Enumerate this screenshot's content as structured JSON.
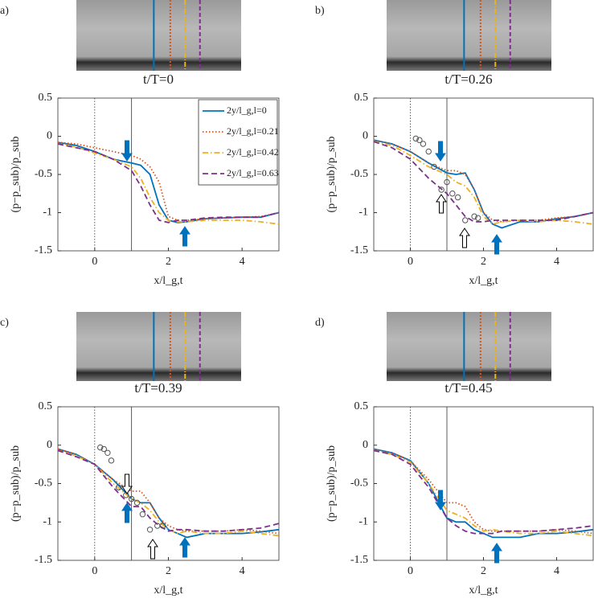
{
  "chart_data": [
    {
      "type": "line",
      "panel": "a)",
      "title": "t/T=0",
      "xlabel": "x/l_g,t",
      "ylabel": "(p−p_sub)/p_sub",
      "xlim": [
        -1,
        5
      ],
      "xticks": [
        0,
        2,
        4
      ],
      "ylim": [
        -1.5,
        0.5
      ],
      "yticks": [
        0.5,
        0,
        -0.5,
        -1,
        -1.5
      ],
      "vlines": [
        0,
        1
      ],
      "legend": "upper right",
      "x": [
        -1,
        -0.5,
        0,
        0.5,
        1,
        1.25,
        1.5,
        1.75,
        2,
        2.25,
        2.5,
        3,
        3.5,
        4,
        4.5,
        5
      ],
      "series": [
        {
          "name": "2y/l_g,l=0",
          "color": "#0072bd",
          "dash": "solid",
          "values": [
            -0.08,
            -0.12,
            -0.2,
            -0.3,
            -0.35,
            -0.38,
            -0.5,
            -0.9,
            -1.1,
            -1.13,
            -1.12,
            -1.08,
            -1.07,
            -1.06,
            -1.06,
            -1.0
          ]
        },
        {
          "name": "2y/l_g,l=0.21",
          "color": "#d95319",
          "dash": "dotted",
          "values": [
            -0.08,
            -0.1,
            -0.15,
            -0.2,
            -0.25,
            -0.3,
            -0.4,
            -0.6,
            -1.05,
            -1.1,
            -1.1,
            -1.08,
            -1.07,
            -1.06,
            -1.05,
            -1.0
          ]
        },
        {
          "name": "2y/l_g,l=0.42",
          "color": "#edb120",
          "dash": "dashdot",
          "values": [
            -0.1,
            -0.14,
            -0.22,
            -0.3,
            -0.4,
            -0.55,
            -0.8,
            -1.0,
            -1.1,
            -1.12,
            -1.12,
            -1.1,
            -1.1,
            -1.1,
            -1.12,
            -1.15
          ]
        },
        {
          "name": "2y/l_g,l=0.63",
          "color": "#7e2f8e",
          "dash": "dashed",
          "values": [
            -0.1,
            -0.15,
            -0.2,
            -0.3,
            -0.45,
            -0.65,
            -0.9,
            -1.1,
            -1.13,
            -1.1,
            -1.1,
            -1.07,
            -1.06,
            -1.06,
            -1.06,
            -1.0
          ]
        }
      ]
    },
    {
      "type": "line",
      "panel": "b)",
      "title": "t/T=0.26",
      "xlabel": "x/l_g,t",
      "ylabel": "(p−p_sub)/p_sub",
      "xlim": [
        -1,
        5
      ],
      "xticks": [
        0,
        2,
        4
      ],
      "ylim": [
        -1.5,
        0.5
      ],
      "yticks": [
        0.5,
        0,
        -0.5,
        -1,
        -1.5
      ],
      "vlines": [
        0,
        1
      ],
      "x": [
        -1,
        -0.5,
        0,
        0.5,
        1,
        1.25,
        1.5,
        1.75,
        2,
        2.25,
        2.5,
        3,
        3.5,
        4,
        4.5,
        5
      ],
      "series": [
        {
          "color": "#0072bd",
          "dash": "solid",
          "values": [
            -0.05,
            -0.1,
            -0.2,
            -0.35,
            -0.48,
            -0.5,
            -0.48,
            -0.7,
            -1.0,
            -1.15,
            -1.2,
            -1.12,
            -1.12,
            -1.08,
            -1.05,
            -1.0
          ]
        },
        {
          "color": "#d95319",
          "dash": "dotted",
          "values": [
            -0.05,
            -0.1,
            -0.2,
            -0.35,
            -0.45,
            -0.45,
            -0.5,
            -0.7,
            -1.0,
            -1.1,
            -1.12,
            -1.1,
            -1.1,
            -1.07,
            -1.05,
            -1.0
          ]
        },
        {
          "color": "#edb120",
          "dash": "dashdot",
          "values": [
            -0.07,
            -0.12,
            -0.25,
            -0.4,
            -0.5,
            -0.6,
            -0.65,
            -0.8,
            -1.05,
            -1.15,
            -1.12,
            -1.1,
            -1.12,
            -1.1,
            -1.12,
            -1.15
          ]
        },
        {
          "color": "#7e2f8e",
          "dash": "dashed",
          "values": [
            -0.07,
            -0.15,
            -0.3,
            -0.55,
            -0.75,
            -0.9,
            -1.05,
            -1.12,
            -1.12,
            -1.1,
            -1.1,
            -1.1,
            -1.1,
            -1.1,
            -1.05,
            -1.0
          ]
        }
      ],
      "points": {
        "x": [
          0.15,
          0.25,
          0.35,
          0.5,
          0.65,
          0.85,
          1.0,
          1.15,
          1.3,
          1.5,
          1.75,
          1.85
        ],
        "y": [
          -0.03,
          -0.05,
          -0.1,
          -0.2,
          -0.4,
          -0.7,
          -0.6,
          -0.75,
          -0.8,
          -1.1,
          -1.05,
          -1.07
        ]
      }
    },
    {
      "type": "line",
      "panel": "c)",
      "title": "t/T=0.39",
      "xlabel": "x/l_g,t",
      "ylabel": "(p−p_sub)/p_sub",
      "xlim": [
        -1,
        5
      ],
      "xticks": [
        0,
        2,
        4
      ],
      "ylim": [
        -1.5,
        0.5
      ],
      "yticks": [
        0.5,
        0,
        -0.5,
        -1,
        -1.5
      ],
      "vlines": [
        0,
        1
      ],
      "x": [
        -1,
        -0.5,
        0,
        0.5,
        1,
        1.25,
        1.5,
        1.75,
        2,
        2.25,
        2.5,
        3,
        3.5,
        4,
        4.5,
        5
      ],
      "series": [
        {
          "color": "#0072bd",
          "dash": "solid",
          "values": [
            -0.05,
            -0.12,
            -0.25,
            -0.45,
            -0.7,
            -0.75,
            -0.75,
            -0.95,
            -1.1,
            -1.15,
            -1.2,
            -1.15,
            -1.15,
            -1.15,
            -1.13,
            -1.1
          ]
        },
        {
          "color": "#d95319",
          "dash": "dotted",
          "values": [
            -0.05,
            -0.12,
            -0.25,
            -0.45,
            -0.6,
            -0.6,
            -0.75,
            -0.95,
            -1.05,
            -1.1,
            -1.12,
            -1.12,
            -1.12,
            -1.1,
            -1.12,
            -1.15
          ]
        },
        {
          "color": "#edb120",
          "dash": "dashdot",
          "values": [
            -0.07,
            -0.14,
            -0.25,
            -0.5,
            -0.7,
            -0.75,
            -0.85,
            -1.0,
            -1.1,
            -1.15,
            -1.12,
            -1.15,
            -1.15,
            -1.12,
            -1.15,
            -1.18
          ]
        },
        {
          "color": "#7e2f8e",
          "dash": "dashed",
          "values": [
            -0.07,
            -0.15,
            -0.25,
            -0.55,
            -0.8,
            -0.8,
            -0.95,
            -1.05,
            -1.12,
            -1.1,
            -1.1,
            -1.12,
            -1.12,
            -1.1,
            -1.08,
            -1.02
          ]
        }
      ],
      "points": {
        "x": [
          0.15,
          0.25,
          0.35,
          0.45,
          0.65,
          0.85,
          1.0,
          1.15,
          1.3,
          1.5,
          1.7,
          1.85
        ],
        "y": [
          -0.03,
          -0.05,
          -0.1,
          -0.2,
          -0.55,
          -0.65,
          -0.7,
          -0.75,
          -0.9,
          -1.1,
          -1.05,
          -1.05
        ]
      }
    },
    {
      "type": "line",
      "panel": "d)",
      "title": "t/T=0.45",
      "xlabel": "x/l_g,t",
      "ylabel": "(p−p_sub)/p_sub",
      "xlim": [
        -1,
        5
      ],
      "xticks": [
        0,
        2,
        4
      ],
      "ylim": [
        -1.5,
        0.5
      ],
      "yticks": [
        0.5,
        0,
        -0.5,
        -1,
        -1.5
      ],
      "vlines": [
        0,
        1
      ],
      "x": [
        -1,
        -0.5,
        0,
        0.5,
        1,
        1.25,
        1.5,
        1.75,
        2,
        2.25,
        2.5,
        3,
        3.5,
        4,
        4.5,
        5
      ],
      "series": [
        {
          "color": "#0072bd",
          "dash": "solid",
          "values": [
            -0.05,
            -0.1,
            -0.2,
            -0.5,
            -0.95,
            -1.0,
            -1.0,
            -1.1,
            -1.15,
            -1.2,
            -1.2,
            -1.2,
            -1.15,
            -1.15,
            -1.13,
            -1.1
          ]
        },
        {
          "color": "#d95319",
          "dash": "dotted",
          "values": [
            -0.05,
            -0.1,
            -0.2,
            -0.45,
            -0.75,
            -0.75,
            -0.8,
            -1.0,
            -1.1,
            -1.12,
            -1.12,
            -1.12,
            -1.12,
            -1.1,
            -1.12,
            -1.15
          ]
        },
        {
          "color": "#edb120",
          "dash": "dashdot",
          "values": [
            -0.07,
            -0.12,
            -0.22,
            -0.5,
            -0.85,
            -0.9,
            -0.95,
            -1.05,
            -1.12,
            -1.1,
            -1.12,
            -1.15,
            -1.15,
            -1.12,
            -1.15,
            -1.18
          ]
        },
        {
          "color": "#7e2f8e",
          "dash": "dashed",
          "values": [
            -0.07,
            -0.12,
            -0.25,
            -0.55,
            -0.95,
            -1.05,
            -1.12,
            -1.15,
            -1.15,
            -1.15,
            -1.12,
            -1.12,
            -1.12,
            -1.1,
            -1.08,
            -1.05
          ]
        }
      ]
    }
  ]
}
